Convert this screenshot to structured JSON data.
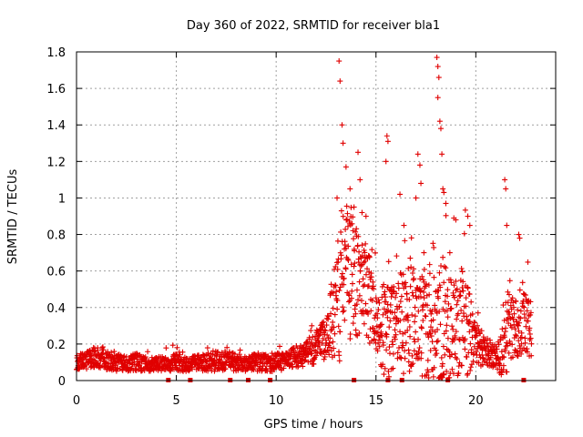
{
  "chart_data": {
    "type": "scatter",
    "title": "Day 360 of 2022, SRMTID for receiver bla1",
    "xlabel": "GPS time / hours",
    "ylabel": "SRMTID / TECUs",
    "xlim": [
      0,
      24
    ],
    "ylim": [
      0,
      1.8
    ],
    "xticks": [
      0,
      5,
      10,
      15,
      20
    ],
    "xtick_labels": [
      "0",
      "5",
      "10",
      "15",
      "20"
    ],
    "yticks": [
      0,
      0.2,
      0.4,
      0.6,
      0.8,
      1,
      1.2,
      1.4,
      1.6,
      1.8
    ],
    "ytick_labels": [
      "0",
      "0.2",
      "0.4",
      "0.6",
      "0.8",
      "1",
      "1.2",
      "1.4",
      "1.6",
      "1.8"
    ],
    "grid": true,
    "marker": "+",
    "series_color": "#e00000",
    "gap_markers": [
      4.6,
      5.7,
      7.7,
      8.6,
      9.7,
      13.9,
      15.6,
      16.3,
      18.6,
      22.4
    ],
    "envelope": {
      "x": [
        0.0,
        0.5,
        1.0,
        1.5,
        2.0,
        2.5,
        3.0,
        3.5,
        4.0,
        4.5,
        5.0,
        5.5,
        6.0,
        6.5,
        7.0,
        7.5,
        8.0,
        8.5,
        9.0,
        9.5,
        10.0,
        10.5,
        11.0,
        11.5,
        12.0,
        12.5,
        13.0,
        13.3,
        13.6,
        14.0,
        14.3,
        14.6,
        15.0,
        15.3,
        15.6,
        16.0,
        16.3,
        16.6,
        17.0,
        17.3,
        17.6,
        18.0,
        18.3,
        18.6,
        19.0,
        19.3,
        19.6,
        20.0,
        20.5,
        21.0,
        21.3,
        21.6,
        22.0,
        22.4,
        22.8
      ],
      "base": [
        0.1,
        0.11,
        0.13,
        0.11,
        0.1,
        0.09,
        0.1,
        0.09,
        0.09,
        0.09,
        0.1,
        0.09,
        0.1,
        0.1,
        0.11,
        0.11,
        0.1,
        0.09,
        0.1,
        0.1,
        0.1,
        0.11,
        0.13,
        0.15,
        0.18,
        0.24,
        0.4,
        0.55,
        0.62,
        0.55,
        0.5,
        0.45,
        0.32,
        0.3,
        0.28,
        0.3,
        0.34,
        0.36,
        0.34,
        0.32,
        0.28,
        0.3,
        0.3,
        0.28,
        0.3,
        0.32,
        0.28,
        0.2,
        0.16,
        0.13,
        0.14,
        0.3,
        0.32,
        0.3,
        0.28
      ],
      "spread": [
        0.04,
        0.05,
        0.06,
        0.05,
        0.05,
        0.04,
        0.05,
        0.04,
        0.04,
        0.04,
        0.05,
        0.04,
        0.04,
        0.05,
        0.06,
        0.05,
        0.05,
        0.04,
        0.05,
        0.05,
        0.05,
        0.05,
        0.06,
        0.07,
        0.09,
        0.12,
        0.3,
        0.45,
        0.4,
        0.3,
        0.3,
        0.28,
        0.15,
        0.25,
        0.3,
        0.2,
        0.3,
        0.35,
        0.25,
        0.3,
        0.35,
        0.25,
        0.4,
        0.3,
        0.28,
        0.3,
        0.25,
        0.12,
        0.08,
        0.06,
        0.12,
        0.25,
        0.22,
        0.18,
        0.15
      ]
    },
    "spikes": [
      {
        "x": 13.15,
        "y": 1.75
      },
      {
        "x": 13.2,
        "y": 1.64
      },
      {
        "x": 13.3,
        "y": 1.4
      },
      {
        "x": 13.35,
        "y": 1.3
      },
      {
        "x": 13.5,
        "y": 1.17
      },
      {
        "x": 13.7,
        "y": 1.05
      },
      {
        "x": 14.1,
        "y": 1.25
      },
      {
        "x": 14.2,
        "y": 1.1
      },
      {
        "x": 14.3,
        "y": 0.92
      },
      {
        "x": 15.55,
        "y": 1.34
      },
      {
        "x": 15.6,
        "y": 1.31
      },
      {
        "x": 15.5,
        "y": 1.2
      },
      {
        "x": 16.2,
        "y": 1.02
      },
      {
        "x": 17.0,
        "y": 1.0
      },
      {
        "x": 17.1,
        "y": 1.24
      },
      {
        "x": 17.2,
        "y": 1.18
      },
      {
        "x": 17.25,
        "y": 1.08
      },
      {
        "x": 18.05,
        "y": 1.77
      },
      {
        "x": 18.1,
        "y": 1.72
      },
      {
        "x": 18.15,
        "y": 1.66
      },
      {
        "x": 18.1,
        "y": 1.55
      },
      {
        "x": 18.2,
        "y": 1.42
      },
      {
        "x": 18.25,
        "y": 1.38
      },
      {
        "x": 18.3,
        "y": 1.24
      },
      {
        "x": 18.35,
        "y": 1.05
      },
      {
        "x": 18.4,
        "y": 1.03
      },
      {
        "x": 18.5,
        "y": 0.97
      },
      {
        "x": 18.9,
        "y": 0.89
      },
      {
        "x": 19.0,
        "y": 0.88
      },
      {
        "x": 19.6,
        "y": 0.9
      },
      {
        "x": 19.7,
        "y": 0.85
      },
      {
        "x": 21.45,
        "y": 1.1
      },
      {
        "x": 21.5,
        "y": 1.05
      },
      {
        "x": 21.55,
        "y": 0.85
      },
      {
        "x": 22.15,
        "y": 0.8
      },
      {
        "x": 22.2,
        "y": 0.78
      },
      {
        "x": 13.05,
        "y": 1.0
      },
      {
        "x": 13.9,
        "y": 0.95
      },
      {
        "x": 14.5,
        "y": 0.9
      },
      {
        "x": 16.4,
        "y": 0.85
      },
      {
        "x": 17.4,
        "y": 0.7
      },
      {
        "x": 18.7,
        "y": 0.7
      }
    ]
  }
}
